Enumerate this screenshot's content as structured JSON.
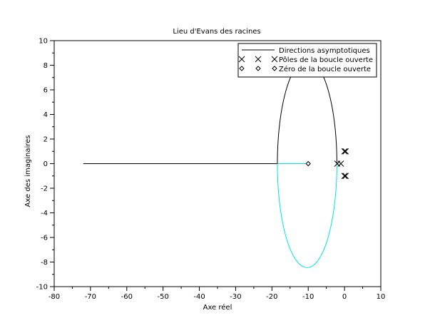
{
  "chart_data": {
    "type": "line",
    "title": "Lieu d'Evans des racines",
    "xlabel": "Axe réel",
    "ylabel": "Axe des imaginaires",
    "xlim": [
      -80,
      10
    ],
    "ylim": [
      -10,
      10
    ],
    "xticks": [
      -80,
      -70,
      -60,
      -50,
      -40,
      -30,
      -20,
      -10,
      0,
      10
    ],
    "yticks": [
      -10,
      -8,
      -6,
      -4,
      -2,
      0,
      2,
      4,
      6,
      8,
      10
    ],
    "grid": false,
    "legend_position": "top-right",
    "legend": [
      {
        "label": "Directions asymptotiques",
        "marker": "line"
      },
      {
        "label": "Pôles de la boucle ouverte",
        "marker": "x"
      },
      {
        "label": "Zéro de la boucle ouverte",
        "marker": "diamond"
      }
    ],
    "asymptote": {
      "color": "#000000",
      "points": [
        [
          -72,
          0
        ],
        [
          -18.5,
          0
        ]
      ]
    },
    "branches": [
      {
        "color": "#00e5e5",
        "points": [
          [
            -18.5,
            0
          ],
          [
            -10,
            0
          ]
        ]
      },
      {
        "color": "#00e5e5",
        "type": "ellipse-lower",
        "center": [
          -10.3,
          0
        ],
        "rx": 8.2,
        "ry": 8.45
      },
      {
        "color": "#000000",
        "type": "ellipse-upper",
        "center": [
          -10.3,
          0
        ],
        "rx": 8.2,
        "ry": 8.45
      }
    ],
    "poles": [
      [
        -2,
        0
      ],
      [
        -1,
        0
      ],
      [
        0,
        1
      ],
      [
        0.3,
        1
      ],
      [
        0,
        -1
      ],
      [
        0.3,
        -1
      ]
    ],
    "zeros": [
      [
        -10,
        0
      ]
    ]
  }
}
